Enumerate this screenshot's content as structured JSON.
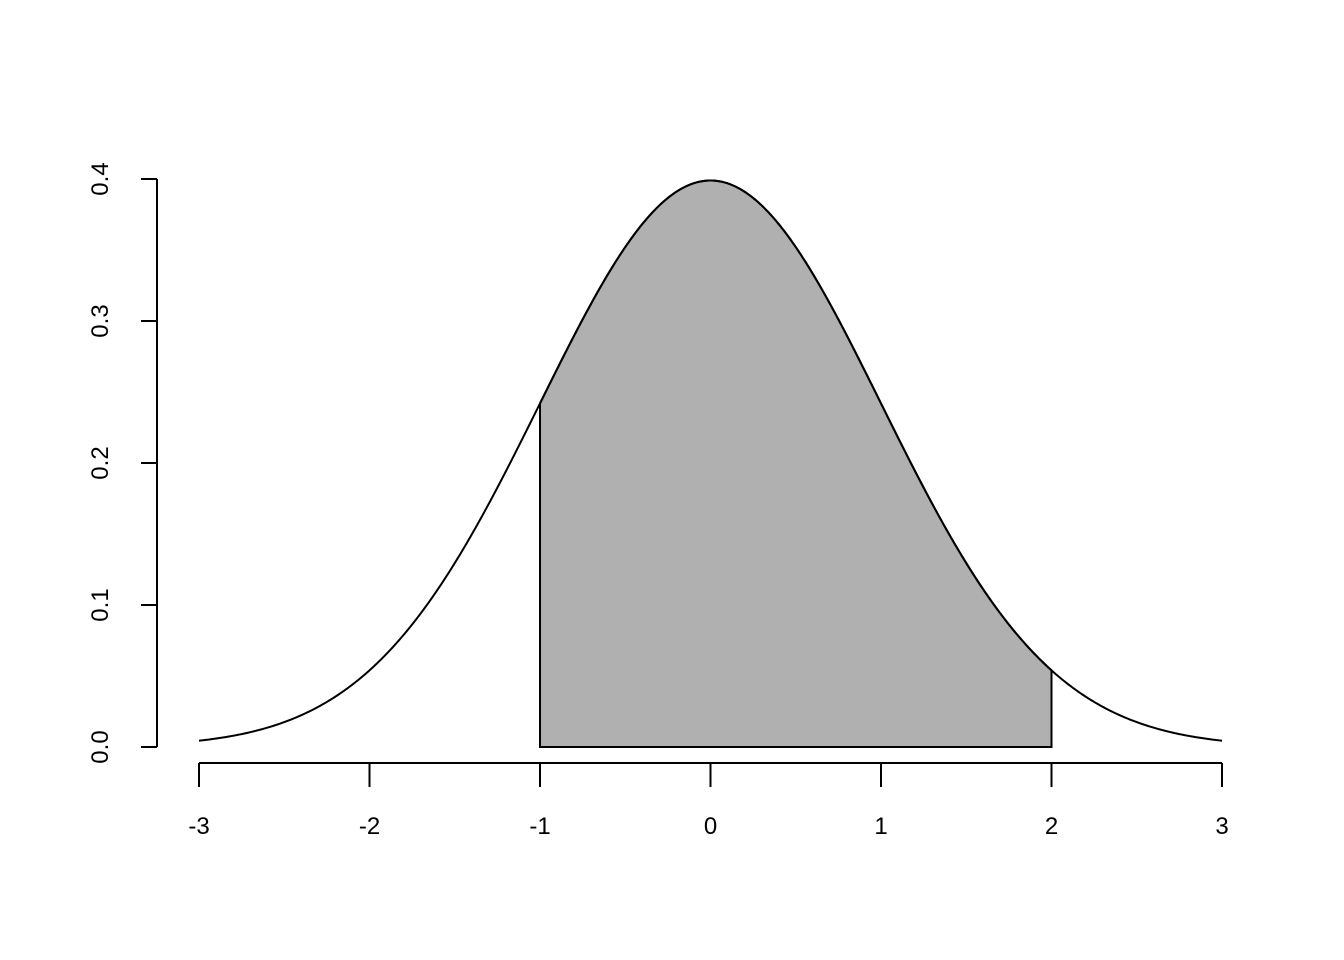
{
  "chart_data": {
    "type": "line",
    "title": "",
    "xlabel": "",
    "ylabel": "",
    "curve": "standard normal density",
    "x_range": [
      -3,
      3
    ],
    "xlim": [
      -3,
      3
    ],
    "ylim": [
      0,
      0.4
    ],
    "x_ticks": [
      -3,
      -2,
      -1,
      0,
      1,
      2,
      3
    ],
    "x_tick_labels": [
      "-3",
      "-2",
      "-1",
      "0",
      "1",
      "2",
      "3"
    ],
    "y_ticks": [
      0,
      0.1,
      0.2,
      0.3,
      0.4
    ],
    "y_tick_labels": [
      "0.0",
      "0.1",
      "0.2",
      "0.3",
      "0.4"
    ],
    "shaded_region": {
      "from": -1,
      "to": 2,
      "color": "#b0b0b0"
    },
    "line_color": "#000000",
    "grid": false,
    "legend": "none"
  }
}
